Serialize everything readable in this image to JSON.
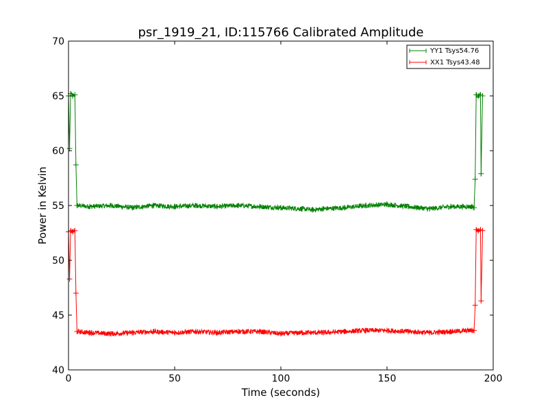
{
  "chart_data": {
    "type": "line",
    "title": "psr_1919_21, ID:115766 Calibrated Amplitude",
    "xlabel": "Time (seconds)",
    "ylabel": "Power in Kelvin",
    "xlim": [
      0,
      200
    ],
    "ylim": [
      40,
      70
    ],
    "xticks": [
      0,
      50,
      100,
      150,
      200
    ],
    "yticks": [
      40,
      45,
      50,
      55,
      60,
      65,
      70
    ],
    "grid": false,
    "legend_position": "top-right",
    "series": [
      {
        "name": "YY1 Tsys54.76",
        "color": "#008000",
        "marker": "+",
        "points": [
          [
            0,
            65.0
          ],
          [
            0.5,
            60.2
          ],
          [
            1.0,
            65.2
          ],
          [
            2.0,
            65.0
          ],
          [
            3.0,
            65.1
          ],
          [
            3.5,
            58.7
          ],
          [
            4.0,
            55.0
          ],
          [
            10,
            54.9
          ],
          [
            20,
            55.0
          ],
          [
            30,
            54.8
          ],
          [
            40,
            55.0
          ],
          [
            50,
            54.9
          ],
          [
            60,
            55.0
          ],
          [
            70,
            54.9
          ],
          [
            80,
            55.0
          ],
          [
            90,
            54.9
          ],
          [
            100,
            54.8
          ],
          [
            110,
            54.7
          ],
          [
            115,
            54.6
          ],
          [
            120,
            54.7
          ],
          [
            130,
            54.8
          ],
          [
            140,
            55.0
          ],
          [
            150,
            55.1
          ],
          [
            160,
            54.9
          ],
          [
            170,
            54.7
          ],
          [
            180,
            54.9
          ],
          [
            190,
            54.9
          ],
          [
            191,
            54.8
          ],
          [
            191.5,
            57.4
          ],
          [
            192,
            65.1
          ],
          [
            193,
            65.0
          ],
          [
            194,
            65.1
          ],
          [
            194.3,
            57.9
          ],
          [
            195,
            65.0
          ]
        ]
      },
      {
        "name": "XX1 Tsys43.48",
        "color": "#ff0000",
        "marker": "+",
        "points": [
          [
            0,
            52.6
          ],
          [
            0.5,
            48.3
          ],
          [
            1.0,
            52.7
          ],
          [
            2.0,
            52.6
          ],
          [
            3.0,
            52.7
          ],
          [
            3.5,
            47.0
          ],
          [
            4.0,
            43.5
          ],
          [
            10,
            43.4
          ],
          [
            20,
            43.3
          ],
          [
            30,
            43.4
          ],
          [
            40,
            43.5
          ],
          [
            50,
            43.4
          ],
          [
            60,
            43.5
          ],
          [
            70,
            43.4
          ],
          [
            80,
            43.5
          ],
          [
            90,
            43.5
          ],
          [
            100,
            43.3
          ],
          [
            110,
            43.4
          ],
          [
            120,
            43.4
          ],
          [
            130,
            43.5
          ],
          [
            140,
            43.6
          ],
          [
            150,
            43.6
          ],
          [
            160,
            43.5
          ],
          [
            170,
            43.4
          ],
          [
            180,
            43.5
          ],
          [
            190,
            43.6
          ],
          [
            191,
            43.6
          ],
          [
            191.5,
            45.9
          ],
          [
            192,
            52.8
          ],
          [
            193,
            52.7
          ],
          [
            194,
            52.8
          ],
          [
            194.3,
            46.3
          ],
          [
            195,
            52.7
          ]
        ]
      }
    ]
  }
}
